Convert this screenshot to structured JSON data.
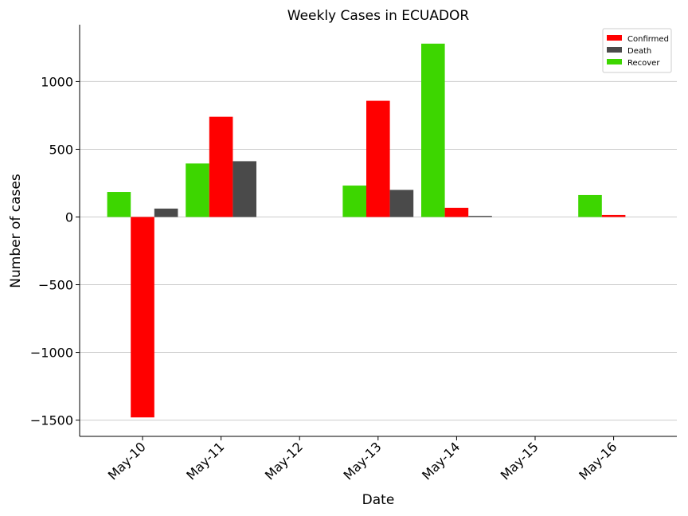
{
  "chart_data": {
    "type": "bar",
    "title": "Weekly Cases in ECUADOR",
    "xlabel": "Date",
    "ylabel": "Number of cases",
    "categories": [
      "May-10",
      "May-11",
      "May-12",
      "May-13",
      "May-14",
      "May-15",
      "May-16"
    ],
    "series": [
      {
        "name": "Recover",
        "color": "#3dd600",
        "values": [
          185,
          395,
          0,
          232,
          1280,
          0,
          162
        ]
      },
      {
        "name": "Confirmed",
        "color": "#ff0000",
        "values": [
          -1480,
          740,
          0,
          858,
          68,
          0,
          15
        ]
      },
      {
        "name": "Death",
        "color": "#4a4a4a",
        "values": [
          62,
          412,
          0,
          200,
          8,
          0,
          0
        ]
      }
    ],
    "legend_order": [
      "Confirmed",
      "Death",
      "Recover"
    ],
    "ylim": [
      -1620,
      1420
    ],
    "yticks": [
      -1500,
      -1000,
      -500,
      0,
      500,
      1000
    ],
    "ytick_labels": [
      "−1500",
      "−1000",
      "−500",
      "0",
      "500",
      "1000"
    ],
    "grid": "horizontal",
    "legend_position": "top-right"
  }
}
